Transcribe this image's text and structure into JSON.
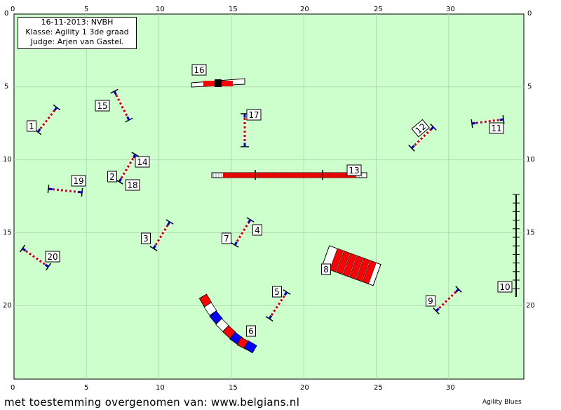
{
  "event": {
    "date_club": "16-11-2013: NVBH",
    "class_label": "Klasse: Agility 1 3de graad",
    "judge_label": "Judge: Arjen van Gastel."
  },
  "axes": {
    "top_x": [
      "0",
      "5",
      "10",
      "15",
      "20",
      "25",
      "30"
    ],
    "bottom_x": [
      "0",
      "5",
      "10",
      "15",
      "20",
      "25",
      "30"
    ],
    "left_y": [
      "0",
      "5",
      "10",
      "15",
      "20"
    ],
    "right_y": [
      "0",
      "5",
      "10",
      "15",
      "20"
    ]
  },
  "obstacles": [
    {
      "number": "1",
      "type": "jump"
    },
    {
      "number": "2",
      "type": "jump"
    },
    {
      "number": "3",
      "type": "jump"
    },
    {
      "number": "4",
      "type": "jump"
    },
    {
      "number": "5",
      "type": "jump"
    },
    {
      "number": "6",
      "type": "tunnel"
    },
    {
      "number": "7",
      "type": "jump"
    },
    {
      "number": "8",
      "type": "tunnel"
    },
    {
      "number": "9",
      "type": "jump"
    },
    {
      "number": "10",
      "type": "weave"
    },
    {
      "number": "11",
      "type": "jump"
    },
    {
      "number": "12",
      "type": "jump"
    },
    {
      "number": "13",
      "type": "dogwalk"
    },
    {
      "number": "14",
      "type": "jump"
    },
    {
      "number": "15",
      "type": "jump"
    },
    {
      "number": "16",
      "type": "seesaw"
    },
    {
      "number": "17",
      "type": "jump"
    },
    {
      "number": "18",
      "type": "jump"
    },
    {
      "number": "19",
      "type": "jump"
    },
    {
      "number": "20",
      "type": "jump"
    }
  ],
  "colors": {
    "field": "#ccffcc",
    "grid": "#b4d8b4",
    "bar_red": "#cc0000",
    "wing_blue": "#0000cc",
    "contact_red": "#ff0000"
  },
  "footer": {
    "credit": "met toestemming overgenomen van: www.belgians.nl",
    "brand": "Agility Blues"
  }
}
